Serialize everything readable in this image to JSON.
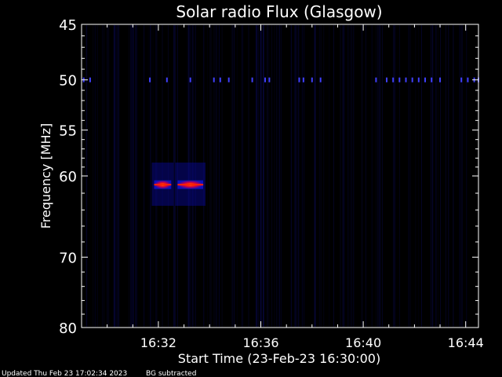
{
  "chart_data": {
    "type": "heatmap",
    "title": "Solar radio Flux (Glasgow)",
    "xlabel": "Start Time (23-Feb-23 16:30:00)",
    "ylabel": "Frequency [MHz]",
    "xlim": [
      "16:29",
      "16:44:30"
    ],
    "ylim": [
      45,
      80
    ],
    "y_log": true,
    "y_ticks": [
      45,
      50,
      55,
      60,
      70,
      80
    ],
    "y_tick_labels": [
      "45",
      "50",
      "55",
      "60",
      "70",
      "80"
    ],
    "x_ticks": [
      "16:32",
      "16:36",
      "16:40",
      "16:44"
    ],
    "x_tick_labels": [
      "16:32",
      "16:36",
      "16:40",
      "16:44"
    ],
    "colors": {
      "background": "#000000",
      "weak": "#0000b4",
      "strong": "#ff2000",
      "peak": "#ffffff"
    },
    "features": [
      {
        "name": "burst",
        "start": "16:31:50",
        "end": "16:32:30",
        "freq_low": 60.5,
        "freq_high": 61.5,
        "peak_freq": 61,
        "intensity": "high"
      },
      {
        "name": "burst",
        "start": "16:32:45",
        "end": "16:33:45",
        "freq_low": 60.5,
        "freq_high": 61.5,
        "peak_freq": 61,
        "intensity": "high"
      },
      {
        "name": "interference",
        "freq": 50,
        "times": [
          "16:29:05",
          "16:29:20",
          "16:31:40",
          "16:32:20",
          "16:33:15",
          "16:34:10",
          "16:34:25",
          "16:34:45",
          "16:35:40",
          "16:36:10",
          "16:36:20",
          "16:37:30",
          "16:37:40",
          "16:38:00",
          "16:38:20",
          "16:40:30",
          "16:40:55",
          "16:41:10",
          "16:41:25",
          "16:41:40",
          "16:41:55",
          "16:42:10",
          "16:42:25",
          "16:42:40",
          "16:43:00",
          "16:43:50",
          "16:44:05",
          "16:44:20",
          "16:44:30"
        ]
      }
    ]
  },
  "footer": {
    "updated": "Updated Thu Feb 23 17:02:34 2023",
    "note": "BG subtracted"
  }
}
